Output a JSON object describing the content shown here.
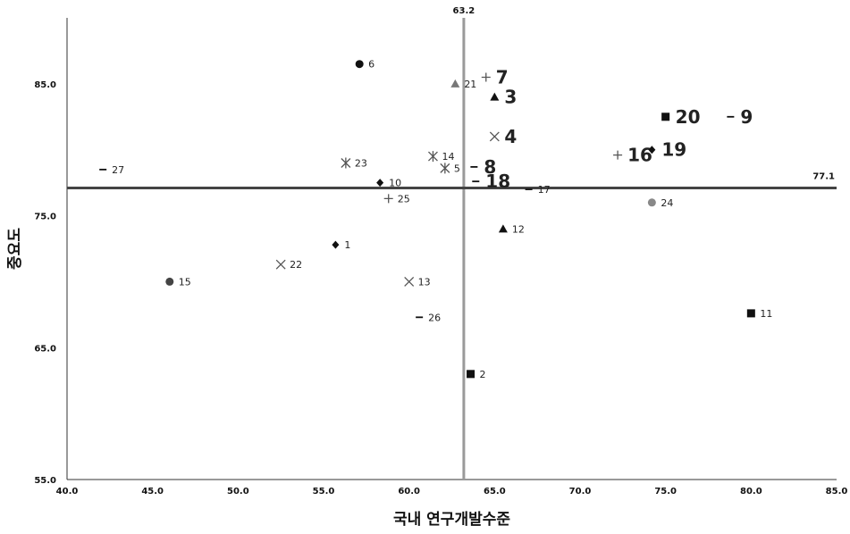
{
  "chart_data": {
    "type": "scatter",
    "title": "",
    "xlabel": "국내 연구개발수준",
    "ylabel": "중요도",
    "xlim": [
      40.0,
      85.0
    ],
    "ylim": [
      55.0,
      90.0
    ],
    "xticks": [
      "40.0",
      "45.0",
      "50.0",
      "55.0",
      "60.0",
      "65.0",
      "70.0",
      "75.0",
      "80.0",
      "85.0"
    ],
    "yticks": [
      "55.0",
      "65.0",
      "75.0",
      "85.0"
    ],
    "reference_lines": {
      "vertical": {
        "x": 63.2,
        "label": "63.2"
      },
      "horizontal": {
        "y": 77.1,
        "label": "77.1"
      }
    },
    "points": [
      {
        "label": "1",
        "x": 55.7,
        "y": 72.8,
        "marker": "diamond",
        "color": "#111111",
        "emphasis": false
      },
      {
        "label": "2",
        "x": 63.6,
        "y": 63.0,
        "marker": "square",
        "color": "#111111",
        "emphasis": false
      },
      {
        "label": "3",
        "x": 65.0,
        "y": 84.0,
        "marker": "triangle",
        "color": "#111111",
        "emphasis": true
      },
      {
        "label": "4",
        "x": 65.0,
        "y": 81.0,
        "marker": "x",
        "color": "#555555",
        "emphasis": true
      },
      {
        "label": "5",
        "x": 62.1,
        "y": 78.6,
        "marker": "star",
        "color": "#555555",
        "emphasis": false
      },
      {
        "label": "6",
        "x": 57.1,
        "y": 86.5,
        "marker": "circle",
        "color": "#111111",
        "emphasis": false
      },
      {
        "label": "7",
        "x": 64.5,
        "y": 85.5,
        "marker": "plus",
        "color": "#555555",
        "emphasis": true
      },
      {
        "label": "8",
        "x": 63.8,
        "y": 78.7,
        "marker": "dash",
        "color": "#111111",
        "emphasis": true
      },
      {
        "label": "9",
        "x": 78.8,
        "y": 82.5,
        "marker": "dash",
        "color": "#111111",
        "emphasis": true
      },
      {
        "label": "10",
        "x": 58.3,
        "y": 77.5,
        "marker": "diamond",
        "color": "#111111",
        "emphasis": false
      },
      {
        "label": "11",
        "x": 80.0,
        "y": 67.6,
        "marker": "square",
        "color": "#111111",
        "emphasis": false
      },
      {
        "label": "12",
        "x": 65.5,
        "y": 74.0,
        "marker": "triangle",
        "color": "#111111",
        "emphasis": false
      },
      {
        "label": "13",
        "x": 60.0,
        "y": 70.0,
        "marker": "x",
        "color": "#555555",
        "emphasis": false
      },
      {
        "label": "14",
        "x": 61.4,
        "y": 79.5,
        "marker": "star",
        "color": "#555555",
        "emphasis": false
      },
      {
        "label": "15",
        "x": 46.0,
        "y": 70.0,
        "marker": "circle",
        "color": "#444444",
        "emphasis": false
      },
      {
        "label": "16",
        "x": 72.2,
        "y": 79.6,
        "marker": "plus",
        "color": "#555555",
        "emphasis": true
      },
      {
        "label": "17",
        "x": 67.0,
        "y": 77.0,
        "marker": "dash",
        "color": "#111111",
        "emphasis": false
      },
      {
        "label": "18",
        "x": 63.9,
        "y": 77.6,
        "marker": "dash",
        "color": "#111111",
        "emphasis": true
      },
      {
        "label": "19",
        "x": 74.2,
        "y": 80.0,
        "marker": "diamond",
        "color": "#111111",
        "emphasis": true
      },
      {
        "label": "20",
        "x": 75.0,
        "y": 82.5,
        "marker": "square",
        "color": "#111111",
        "emphasis": true
      },
      {
        "label": "21",
        "x": 62.7,
        "y": 85.0,
        "marker": "triangle",
        "color": "#777777",
        "emphasis": false
      },
      {
        "label": "22",
        "x": 52.5,
        "y": 71.3,
        "marker": "x",
        "color": "#555555",
        "emphasis": false
      },
      {
        "label": "23",
        "x": 56.3,
        "y": 79.0,
        "marker": "star",
        "color": "#555555",
        "emphasis": false
      },
      {
        "label": "24",
        "x": 74.2,
        "y": 76.0,
        "marker": "circle",
        "color": "#888888",
        "emphasis": false
      },
      {
        "label": "25",
        "x": 58.8,
        "y": 76.3,
        "marker": "plus",
        "color": "#555555",
        "emphasis": false
      },
      {
        "label": "26",
        "x": 60.6,
        "y": 67.3,
        "marker": "dash",
        "color": "#111111",
        "emphasis": false
      },
      {
        "label": "27",
        "x": 42.1,
        "y": 78.5,
        "marker": "dash",
        "color": "#111111",
        "emphasis": false
      }
    ]
  }
}
